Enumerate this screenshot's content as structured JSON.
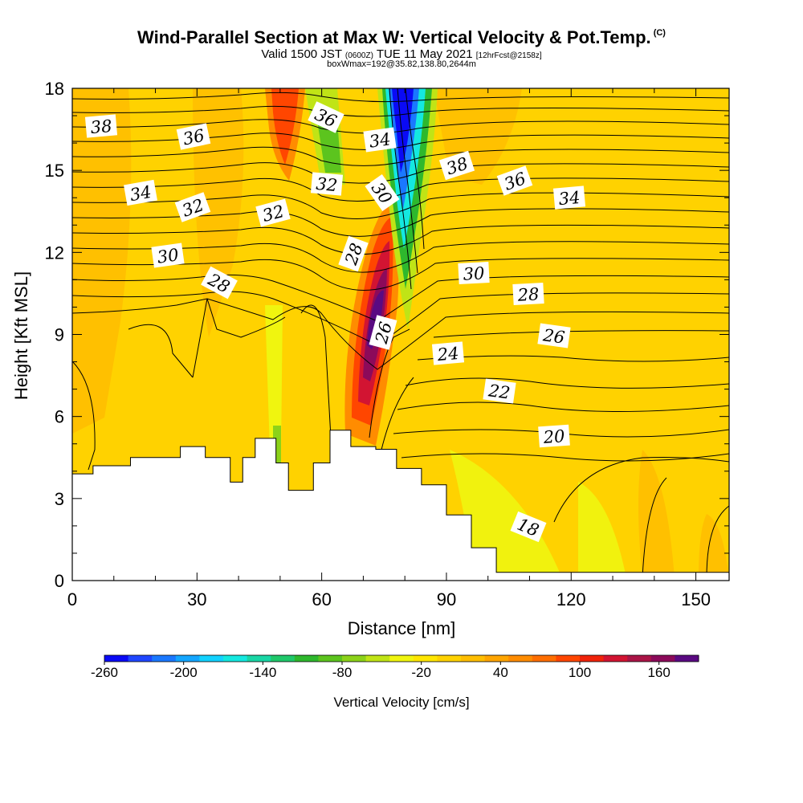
{
  "title": "Wind-Parallel Section at Max W: Vertical Velocity & Pot.Temp.",
  "title_mark": "(C)",
  "subtitle_main": "Valid 1500 JST",
  "subtitle_utc": "(0600Z)",
  "subtitle_date": "TUE 11 May 2021",
  "subtitle_fcst": "[12hrFcst@2158z]",
  "subtitle2": "boxWmax=192@35.82,138.80,2644m",
  "chart_data": {
    "type": "heatmap",
    "xlabel": "Distance [nm]",
    "ylabel": "Height [Kft MSL]",
    "xlim": [
      0,
      158
    ],
    "ylim": [
      0,
      18
    ],
    "x_ticks": [
      "0",
      "30",
      "60",
      "90",
      "120",
      "150"
    ],
    "y_ticks": [
      "0",
      "3",
      "6",
      "9",
      "12",
      "15",
      "18"
    ],
    "x_tick_values": [
      0,
      30,
      60,
      90,
      120,
      150
    ],
    "y_tick_values": [
      0,
      3,
      6,
      9,
      12,
      15,
      18
    ],
    "colorbar": {
      "title": "Vertical Velocity [cm/s]",
      "labels": [
        "-260",
        "-200",
        "-140",
        "-80",
        "-20",
        "40",
        "100",
        "160"
      ],
      "label_values": [
        -260,
        -200,
        -140,
        -80,
        -20,
        40,
        100,
        160
      ],
      "min": -260,
      "max": 190,
      "colors": [
        "#0a0af5",
        "#1f46ff",
        "#1a78ff",
        "#14a6ff",
        "#12d2ff",
        "#14e8e0",
        "#19d6a5",
        "#1fc86a",
        "#2eb82d",
        "#5cc41e",
        "#8cd219",
        "#c0e416",
        "#f0f50f",
        "#ffe600",
        "#ffd200",
        "#ffbe00",
        "#ffa500",
        "#ff8c00",
        "#ff6e00",
        "#ff4600",
        "#f0230a",
        "#d21432",
        "#aa1446",
        "#8c0a5a",
        "#5a0a82"
      ]
    },
    "isentrope_labels": [
      "38",
      "36",
      "34",
      "32",
      "30",
      "28",
      "26",
      "24",
      "22",
      "20",
      "18",
      "36",
      "34",
      "32",
      "30",
      "28",
      "32",
      "38",
      "36",
      "34",
      "30",
      "28",
      "26"
    ],
    "isentrope_values": [
      18,
      20,
      22,
      24,
      26,
      28,
      30,
      32,
      34,
      36,
      38
    ],
    "max_w": 192,
    "terrain_top_kft": [
      [
        0,
        3.9
      ],
      [
        5,
        4.2
      ],
      [
        14,
        4.5
      ],
      [
        26,
        4.9
      ],
      [
        32,
        4.5
      ],
      [
        38,
        3.6
      ],
      [
        41,
        4.5
      ],
      [
        44,
        5.2
      ],
      [
        49,
        4.3
      ],
      [
        52,
        3.3
      ],
      [
        58,
        4.3
      ],
      [
        62,
        5.5
      ],
      [
        67,
        4.9
      ],
      [
        73,
        4.8
      ],
      [
        78,
        4.1
      ],
      [
        84,
        3.5
      ],
      [
        90,
        2.4
      ],
      [
        96,
        1.2
      ],
      [
        102,
        0.3
      ],
      [
        158,
        0.3
      ]
    ]
  }
}
